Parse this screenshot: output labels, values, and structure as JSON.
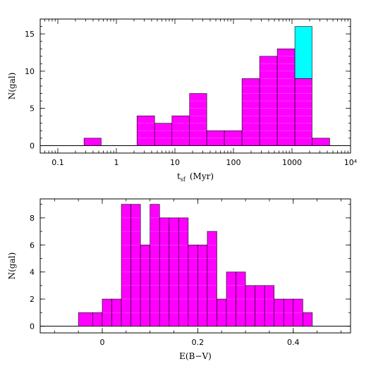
{
  "chart_data": [
    {
      "type": "bar",
      "xscale": "log",
      "xlim": [
        0.05,
        10000
      ],
      "ylim": [
        -1,
        17
      ],
      "xlabel_main": "t",
      "xlabel_sub": "sf",
      "xlabel_unit": "(Myr)",
      "ylabel": "N(gal)",
      "xticks": [
        {
          "value": 0.1,
          "label": "0.1"
        },
        {
          "value": 1,
          "label": "1"
        },
        {
          "value": 10,
          "label": "10"
        },
        {
          "value": 100,
          "label": "100"
        },
        {
          "value": 1000,
          "label": "1000"
        },
        {
          "value": 10000,
          "label": "10⁴"
        }
      ],
      "yticks": [
        {
          "value": 0,
          "label": "0"
        },
        {
          "value": 5,
          "label": "5"
        },
        {
          "value": 10,
          "label": "10"
        },
        {
          "value": 15,
          "label": "15"
        }
      ],
      "colors": {
        "primary": "#ff00ff",
        "secondary": "#00ffff"
      },
      "bins": [
        {
          "x0": 0.28,
          "x1": 0.55,
          "value": 1
        },
        {
          "x0": 2.25,
          "x1": 4.5,
          "value": 4
        },
        {
          "x0": 4.5,
          "x1": 8.9,
          "value": 3
        },
        {
          "x0": 8.9,
          "x1": 17.8,
          "value": 4
        },
        {
          "x0": 17.8,
          "x1": 35,
          "value": 7
        },
        {
          "x0": 35,
          "x1": 70,
          "value": 2
        },
        {
          "x0": 70,
          "x1": 140,
          "value": 2
        },
        {
          "x0": 140,
          "x1": 280,
          "value": 9
        },
        {
          "x0": 280,
          "x1": 560,
          "value": 12
        },
        {
          "x0": 560,
          "x1": 1120,
          "value": 13
        },
        {
          "x0": 1120,
          "x1": 2200,
          "value": 9,
          "extra": 7
        },
        {
          "x0": 2200,
          "x1": 4400,
          "value": 1
        }
      ]
    },
    {
      "type": "bar",
      "xscale": "linear",
      "xlim": [
        -0.13,
        0.52
      ],
      "ylim": [
        -0.5,
        9.4
      ],
      "xlabel": "E(B−V)",
      "ylabel": "N(gal)",
      "xticks": [
        {
          "value": 0,
          "label": "0"
        },
        {
          "value": 0.2,
          "label": "0.2"
        },
        {
          "value": 0.4,
          "label": "0.4"
        }
      ],
      "yticks": [
        {
          "value": 0,
          "label": "0"
        },
        {
          "value": 2,
          "label": "2"
        },
        {
          "value": 4,
          "label": "4"
        },
        {
          "value": 6,
          "label": "6"
        },
        {
          "value": 8,
          "label": "8"
        }
      ],
      "colors": {
        "primary": "#ff00ff"
      },
      "bins": [
        {
          "x0": -0.05,
          "x1": -0.02,
          "value": 1
        },
        {
          "x0": -0.02,
          "x1": 0.0,
          "value": 1
        },
        {
          "x0": 0.0,
          "x1": 0.02,
          "value": 2
        },
        {
          "x0": 0.02,
          "x1": 0.04,
          "value": 2
        },
        {
          "x0": 0.04,
          "x1": 0.06,
          "value": 9
        },
        {
          "x0": 0.06,
          "x1": 0.08,
          "value": 9
        },
        {
          "x0": 0.08,
          "x1": 0.1,
          "value": 6
        },
        {
          "x0": 0.1,
          "x1": 0.12,
          "value": 9
        },
        {
          "x0": 0.12,
          "x1": 0.14,
          "value": 8
        },
        {
          "x0": 0.14,
          "x1": 0.16,
          "value": 8
        },
        {
          "x0": 0.16,
          "x1": 0.18,
          "value": 8
        },
        {
          "x0": 0.18,
          "x1": 0.2,
          "value": 6
        },
        {
          "x0": 0.2,
          "x1": 0.22,
          "value": 6
        },
        {
          "x0": 0.22,
          "x1": 0.24,
          "value": 7
        },
        {
          "x0": 0.24,
          "x1": 0.26,
          "value": 2
        },
        {
          "x0": 0.26,
          "x1": 0.28,
          "value": 4
        },
        {
          "x0": 0.28,
          "x1": 0.3,
          "value": 4
        },
        {
          "x0": 0.3,
          "x1": 0.32,
          "value": 3
        },
        {
          "x0": 0.32,
          "x1": 0.34,
          "value": 3
        },
        {
          "x0": 0.34,
          "x1": 0.36,
          "value": 3
        },
        {
          "x0": 0.36,
          "x1": 0.38,
          "value": 2
        },
        {
          "x0": 0.38,
          "x1": 0.4,
          "value": 2
        },
        {
          "x0": 0.4,
          "x1": 0.42,
          "value": 2
        },
        {
          "x0": 0.42,
          "x1": 0.44,
          "value": 1
        }
      ]
    }
  ]
}
